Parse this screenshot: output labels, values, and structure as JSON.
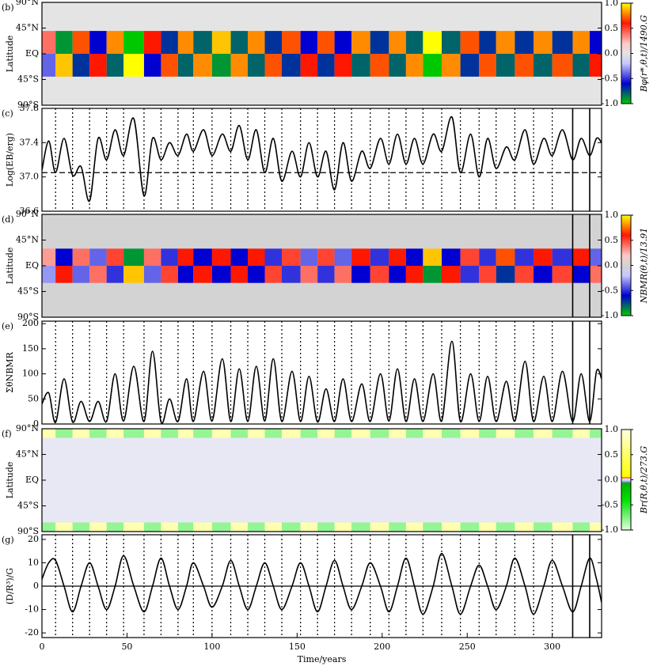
{
  "dotted_lines": [
    8,
    18,
    28,
    38,
    48,
    60,
    70,
    80,
    89,
    100,
    111,
    121,
    131,
    141,
    152,
    162,
    172,
    182,
    193,
    204,
    214,
    224,
    235,
    246,
    257,
    267,
    278,
    289,
    300
  ],
  "solid_lines": [
    312,
    322
  ],
  "chart_data": [
    {
      "type": "heatmap",
      "panel": "(b)",
      "ylabel": "Latitude",
      "colorbar_label": "Bφ(r*,θ,t)/1490.G",
      "xlim": [
        0,
        329
      ],
      "ylim": [
        -90,
        90
      ],
      "background": "#e4e4e4",
      "show_dotted": false,
      "show_solid": false,
      "yticks": [
        {
          "value": 90,
          "label": "90°N"
        },
        {
          "value": 45,
          "label": "45°N"
        },
        {
          "value": 0,
          "label": "EQ"
        },
        {
          "value": -45,
          "label": "45°S"
        },
        {
          "value": -90,
          "label": "90°S"
        }
      ],
      "cticks": [
        {
          "value": 1,
          "label": "1.0"
        },
        0.5,
        {
          "value": 0,
          "label": "0.0"
        },
        -0.5,
        {
          "value": -1,
          "label": "-1.0"
        }
      ],
      "colorscale": [
        [
          -1,
          "#00c800"
        ],
        [
          -0.6,
          "#0000d0"
        ],
        [
          -0.2,
          "#c8c8ff"
        ],
        [
          0,
          "#e4e4e4"
        ],
        [
          0.2,
          "#ffc8c8"
        ],
        [
          0.6,
          "#ff1800"
        ],
        [
          1,
          "#ffff00"
        ]
      ],
      "x_bins": [
        0,
        8,
        18,
        28,
        38,
        48,
        60,
        70,
        80,
        89,
        100,
        111,
        121,
        131,
        141,
        152,
        162,
        172,
        182,
        193,
        204,
        214,
        224,
        235,
        246,
        257,
        267,
        278,
        289,
        300,
        312,
        322,
        329
      ],
      "lat_bins": [
        40,
        0,
        -40
      ],
      "z": [
        [
          0.4,
          -0.9,
          0.7,
          -0.6,
          0.8,
          -1.0,
          0.6,
          -0.7,
          0.8,
          -0.8,
          0.9,
          -0.8,
          0.8,
          -0.7,
          0.7,
          -0.6,
          0.7,
          -0.6,
          0.8,
          -0.7,
          0.8,
          -0.8,
          1.0,
          -0.8,
          0.7,
          -0.7,
          0.8,
          -0.7,
          0.8,
          -0.7,
          0.8,
          -0.6
        ],
        [
          -0.4,
          0.9,
          -0.7,
          0.6,
          -0.8,
          1.0,
          -0.6,
          0.7,
          -0.8,
          0.8,
          -0.9,
          0.8,
          -0.8,
          0.7,
          -0.7,
          0.6,
          -0.7,
          0.6,
          -0.8,
          0.7,
          -0.8,
          0.8,
          -1.0,
          0.8,
          -0.7,
          0.7,
          -0.8,
          0.7,
          -0.8,
          0.7,
          -0.8,
          0.6
        ]
      ]
    },
    {
      "type": "line",
      "panel": "(c)",
      "ylabel": "Log(EB/erg)",
      "xlim": [
        0,
        329
      ],
      "ylim": [
        36.6,
        37.8
      ],
      "yticks": [
        36.6,
        {
          "value": 37,
          "label": "37.0"
        },
        37.4,
        37.8
      ],
      "show_dotted": true,
      "show_solid": true,
      "reference_line": {
        "value": 37.05,
        "style": "dashed"
      },
      "color": "#000000",
      "x": [
        0,
        4,
        8,
        13,
        18,
        23,
        28,
        33,
        38,
        43,
        48,
        54,
        60,
        65,
        70,
        75,
        80,
        85,
        89,
        95,
        100,
        106,
        111,
        116,
        121,
        126,
        131,
        136,
        141,
        147,
        152,
        157,
        162,
        167,
        172,
        177,
        182,
        188,
        193,
        199,
        204,
        209,
        214,
        219,
        224,
        230,
        235,
        241,
        246,
        252,
        257,
        262,
        267,
        273,
        278,
        284,
        289,
        295,
        300,
        306,
        312,
        317,
        322,
        326,
        329
      ],
      "values": [
        37.08,
        37.42,
        37.05,
        37.45,
        37.02,
        37.12,
        36.72,
        37.45,
        37.2,
        37.55,
        37.25,
        37.68,
        36.78,
        37.45,
        37.2,
        37.4,
        37.25,
        37.5,
        37.3,
        37.55,
        37.25,
        37.5,
        37.3,
        37.6,
        37.2,
        37.55,
        37.05,
        37.45,
        36.95,
        37.3,
        37.0,
        37.4,
        37.0,
        37.3,
        36.85,
        37.4,
        36.95,
        37.3,
        37.1,
        37.45,
        37.15,
        37.5,
        37.15,
        37.45,
        37.15,
        37.5,
        37.3,
        37.7,
        37.05,
        37.5,
        37.0,
        37.45,
        37.1,
        37.35,
        37.2,
        37.55,
        37.15,
        37.45,
        37.25,
        37.55,
        37.2,
        37.45,
        37.25,
        37.45,
        37.4
      ]
    },
    {
      "type": "heatmap",
      "panel": "(d)",
      "ylabel": "Latitude",
      "colorbar_label": "NBMR(θ,t)/13.91",
      "xlim": [
        0,
        329
      ],
      "ylim": [
        -90,
        90
      ],
      "background": "#d3d3d3",
      "show_dotted": false,
      "show_solid": true,
      "yticks": [
        {
          "value": 90,
          "label": "90°N"
        },
        {
          "value": 45,
          "label": "45°N"
        },
        {
          "value": 0,
          "label": "EQ"
        },
        {
          "value": -45,
          "label": "45°S"
        },
        {
          "value": -90,
          "label": "90°S"
        }
      ],
      "cticks": [
        {
          "value": 1,
          "label": "1.0"
        },
        0.5,
        {
          "value": 0,
          "label": "0.0"
        },
        -0.5,
        {
          "value": -1,
          "label": "-1.0"
        }
      ],
      "colorscale": [
        [
          -1,
          "#00c800"
        ],
        [
          -0.6,
          "#0000d0"
        ],
        [
          -0.2,
          "#c8c8ff"
        ],
        [
          0,
          "#d3d3d3"
        ],
        [
          0.2,
          "#ffc8c8"
        ],
        [
          0.6,
          "#ff1800"
        ],
        [
          1,
          "#ffff00"
        ]
      ],
      "x_bins": [
        0,
        8,
        18,
        28,
        38,
        48,
        60,
        70,
        80,
        89,
        100,
        111,
        121,
        131,
        141,
        152,
        162,
        172,
        182,
        193,
        204,
        214,
        224,
        235,
        246,
        257,
        267,
        278,
        289,
        300,
        312,
        322,
        329
      ],
      "lat_bins": [
        30,
        0,
        -30
      ],
      "z": [
        [
          0.3,
          -0.6,
          0.4,
          -0.4,
          0.5,
          -0.9,
          0.4,
          -0.5,
          0.6,
          -0.6,
          0.6,
          -0.6,
          0.6,
          -0.5,
          0.5,
          -0.4,
          0.5,
          -0.4,
          0.6,
          -0.5,
          0.6,
          -0.6,
          0.9,
          -0.6,
          0.5,
          -0.5,
          0.7,
          -0.5,
          0.6,
          -0.5,
          0.6,
          -0.4
        ],
        [
          -0.3,
          0.6,
          -0.4,
          0.4,
          -0.5,
          0.9,
          -0.4,
          0.5,
          -0.6,
          0.6,
          -0.6,
          0.6,
          -0.6,
          0.5,
          -0.5,
          0.4,
          -0.5,
          0.4,
          -0.6,
          0.5,
          -0.6,
          0.6,
          -0.9,
          0.6,
          -0.5,
          0.5,
          -0.7,
          0.5,
          -0.6,
          0.5,
          -0.6,
          0.4
        ]
      ]
    },
    {
      "type": "line",
      "panel": "(e)",
      "ylabel": "ΣθNBMR",
      "xlim": [
        0,
        329
      ],
      "ylim": [
        0,
        205
      ],
      "yticks": [
        0,
        50,
        100,
        150,
        200
      ],
      "show_dotted": true,
      "show_solid": true,
      "color": "#000000",
      "x": [
        0,
        4,
        8,
        13,
        18,
        23,
        28,
        33,
        38,
        43,
        48,
        54,
        60,
        65,
        70,
        75,
        80,
        85,
        89,
        95,
        100,
        106,
        111,
        116,
        121,
        126,
        131,
        136,
        141,
        147,
        152,
        157,
        162,
        167,
        172,
        177,
        182,
        188,
        193,
        199,
        204,
        209,
        214,
        219,
        224,
        230,
        235,
        241,
        246,
        252,
        257,
        262,
        267,
        273,
        278,
        284,
        289,
        295,
        300,
        306,
        312,
        317,
        322,
        326,
        329
      ],
      "values": [
        40,
        62,
        3,
        90,
        4,
        45,
        5,
        45,
        5,
        100,
        6,
        115,
        5,
        145,
        4,
        50,
        5,
        90,
        5,
        105,
        6,
        130,
        5,
        110,
        5,
        115,
        6,
        130,
        5,
        105,
        5,
        95,
        4,
        70,
        5,
        90,
        5,
        80,
        5,
        100,
        6,
        110,
        5,
        90,
        5,
        100,
        6,
        165,
        5,
        100,
        5,
        95,
        5,
        85,
        6,
        125,
        5,
        95,
        5,
        105,
        5,
        100,
        5,
        105,
        90
      ]
    },
    {
      "type": "heatmap",
      "panel": "(f)",
      "ylabel": "Latitude",
      "colorbar_label": "Br(R,θ,t)/273.G",
      "xlim": [
        0,
        329
      ],
      "ylim": [
        -90,
        90
      ],
      "background": "#e8e8f4",
      "show_dotted": false,
      "show_solid": false,
      "yticks": [
        {
          "value": 90,
          "label": "90°N"
        },
        {
          "value": 45,
          "label": "45°N"
        },
        {
          "value": 0,
          "label": "EQ"
        },
        {
          "value": -45,
          "label": "45°S"
        },
        {
          "value": -90,
          "label": "90°S"
        }
      ],
      "cticks": [
        {
          "value": 1,
          "label": "1.0"
        },
        0.5,
        {
          "value": 0,
          "label": "0.0"
        },
        -0.5,
        {
          "value": -1,
          "label": "-1.0"
        }
      ],
      "colorscale": [
        [
          -1,
          "#e0ffe0"
        ],
        [
          -0.4,
          "#00e000"
        ],
        [
          -0.06,
          "#00b000"
        ],
        [
          -0.05,
          "#8080ff"
        ],
        [
          0,
          "#e8e8f4"
        ],
        [
          0.05,
          "#ff6060"
        ],
        [
          0.06,
          "#ffff00"
        ],
        [
          1,
          "#ffffe0"
        ]
      ],
      "x_bins": [
        0,
        8,
        18,
        28,
        38,
        48,
        60,
        70,
        80,
        89,
        100,
        111,
        121,
        131,
        141,
        152,
        162,
        172,
        182,
        193,
        204,
        214,
        224,
        235,
        246,
        257,
        267,
        278,
        289,
        300,
        312,
        322,
        329
      ],
      "lat_bins": [
        90,
        74,
        -74,
        -90
      ],
      "z": [
        [
          0.8,
          -0.8,
          0.8,
          -0.8,
          0.8,
          -0.8,
          0.8,
          -0.8,
          0.8,
          -0.8,
          0.8,
          -0.8,
          0.8,
          -0.8,
          0.8,
          -0.8,
          0.8,
          -0.8,
          0.8,
          -0.8,
          0.8,
          -0.8,
          0.8,
          -0.8,
          0.8,
          -0.8,
          0.8,
          -0.8,
          0.8,
          -0.8,
          0.8,
          -0.8
        ],
        [
          0,
          0,
          0,
          0,
          0,
          0,
          0,
          0,
          0,
          0,
          0,
          0,
          0,
          0,
          0,
          0,
          0,
          0,
          0,
          0,
          0,
          0,
          0,
          0,
          0,
          0,
          0,
          0,
          0,
          0,
          0,
          0
        ],
        [
          -0.8,
          0.8,
          -0.8,
          0.8,
          -0.8,
          0.8,
          -0.8,
          0.8,
          -0.8,
          0.8,
          -0.8,
          0.8,
          -0.8,
          0.8,
          -0.8,
          0.8,
          -0.8,
          0.8,
          -0.8,
          0.8,
          -0.8,
          0.8,
          -0.8,
          0.8,
          -0.8,
          0.8,
          -0.8,
          0.8,
          -0.8,
          0.8,
          -0.8,
          0.8
        ]
      ]
    },
    {
      "type": "line",
      "panel": "(g)",
      "ylabel": "(D/R³)/G",
      "xlabel": "Time/years",
      "xlim": [
        0,
        329
      ],
      "ylim": [
        -22,
        22
      ],
      "yticks": [
        -20,
        -10,
        0,
        10,
        20
      ],
      "xticks": [
        0,
        50,
        100,
        150,
        200,
        250,
        300
      ],
      "show_dotted": true,
      "show_solid": true,
      "reference_line": {
        "value": 0,
        "style": "solid"
      },
      "color": "#000000",
      "x": [
        0,
        4,
        8,
        13,
        18,
        23,
        28,
        33,
        38,
        43,
        48,
        54,
        60,
        65,
        70,
        75,
        80,
        85,
        89,
        95,
        100,
        106,
        111,
        116,
        121,
        126,
        131,
        136,
        141,
        147,
        152,
        157,
        162,
        167,
        172,
        177,
        182,
        188,
        193,
        199,
        204,
        209,
        214,
        219,
        224,
        230,
        235,
        241,
        246,
        252,
        257,
        262,
        267,
        273,
        278,
        284,
        289,
        295,
        300,
        306,
        312,
        317,
        322,
        326,
        329
      ],
      "values": [
        3,
        10,
        11,
        0,
        -11,
        0,
        10,
        0,
        -10,
        0,
        13,
        0,
        -11,
        0,
        12,
        0,
        -10,
        0,
        10,
        0,
        -9,
        0,
        11,
        0,
        -10,
        0,
        10,
        0,
        -10,
        0,
        10,
        0,
        -11,
        0,
        11,
        0,
        -10,
        0,
        10,
        0,
        -11,
        0,
        12,
        0,
        -12,
        0,
        14,
        0,
        -12,
        0,
        9,
        0,
        -10,
        0,
        12,
        0,
        -12,
        0,
        11,
        0,
        -11,
        0,
        12,
        3,
        -7
      ]
    }
  ]
}
